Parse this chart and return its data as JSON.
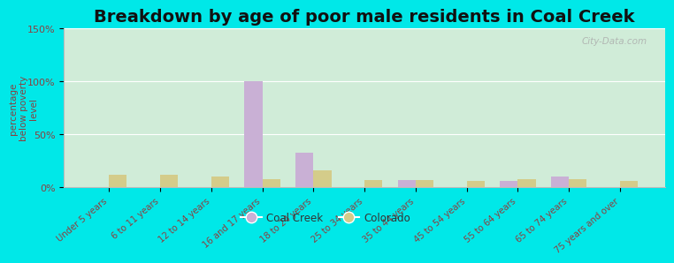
{
  "title": "Breakdown by age of poor male residents in Coal Creek",
  "categories": [
    "Under 5 years",
    "6 to 11 years",
    "12 to 14 years",
    "16 and 17 years",
    "18 to 24 years",
    "25 to 34 years",
    "35 to 44 years",
    "45 to 54 years",
    "55 to 64 years",
    "65 to 74 years",
    "75 years and over"
  ],
  "coal_creek": [
    0,
    0,
    0,
    100,
    33,
    0,
    7,
    0,
    6,
    10,
    0
  ],
  "colorado": [
    12,
    12,
    10,
    8,
    16,
    7,
    7,
    6,
    8,
    8,
    6
  ],
  "coal_creek_color": "#c9b0d5",
  "colorado_color": "#d4cc8a",
  "background_color": "#00e8e8",
  "plot_bg_color_top": "#e8f2e0",
  "plot_bg_color_bottom": "#d0ecd8",
  "ylabel": "percentage\nbelow poverty\nlevel",
  "ylim": [
    0,
    150
  ],
  "yticks": [
    0,
    50,
    100,
    150
  ],
  "ytick_labels": [
    "0%",
    "50%",
    "100%",
    "150%"
  ],
  "watermark": "City-Data.com",
  "bar_width": 0.35,
  "title_fontsize": 14,
  "axis_label_color": "#8b4040",
  "tick_label_color": "#8b4040",
  "legend_labels": [
    "Coal Creek",
    "Colorado"
  ]
}
